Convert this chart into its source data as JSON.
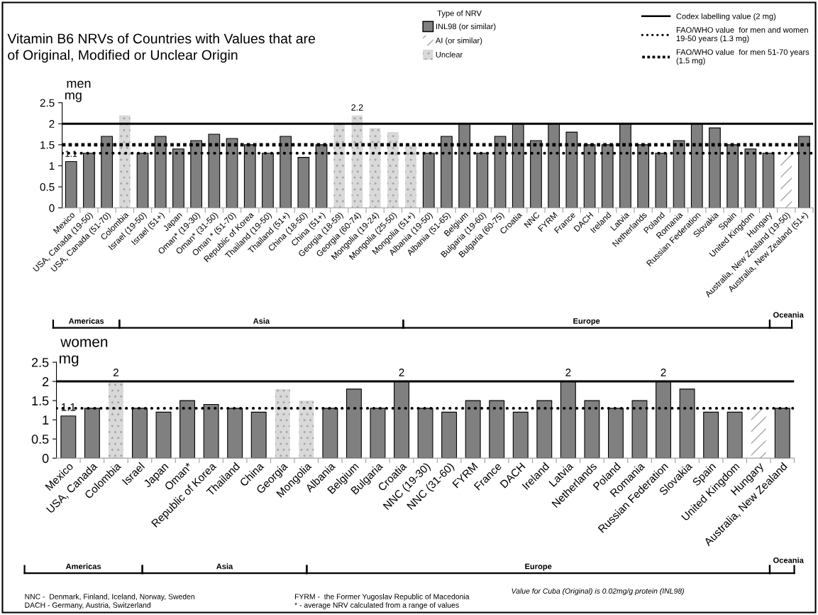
{
  "chart_data": [
    {
      "type": "bar",
      "title": "Vitamin B6 NRVs of Countries with Values that are\nof Original, Modified or Unclear Origin",
      "subtitle": "men",
      "ylabel": "mg",
      "legend_title": "Type of NRV",
      "categories": [
        "Mexico",
        "USA, Canada (19-50)",
        "USA, Canada (51-70)",
        "Colombia",
        "Israel (19-50)",
        "Israel (51+)",
        "Japan",
        "Oman* (19-30)",
        "Oman* (31-50)",
        "Oman * (51-70)",
        "Republic of Korea",
        "Thailand (19-50)",
        "Thailand (51+)",
        "China (18-50)",
        "China (51+)",
        "Georgia (18-59)",
        "Georgia (60-74)",
        "Mongolia (19-24)",
        "Mongolia (25-50)",
        "Mongolia (51+)",
        "Albania (19-50)",
        "Albania (51-65)",
        "Belgium",
        "Bulgaria (19-60)",
        "Bulgaria (60-75)",
        "Croatia",
        "NNC",
        "FYRM",
        "France",
        "DACH",
        "Ireland",
        "Latvia",
        "Netherlands",
        "Poland",
        "Romania",
        "Russian Federation",
        "Slovakia",
        "Spain",
        "United Kingdom",
        "Hungary",
        "Australia, New Zealand (19-50)",
        "Australia, New Zealand (51+)"
      ],
      "series": [
        {
          "name": "INL98 (or similar)",
          "color": "#808080",
          "values": [
            1.1,
            1.3,
            1.7,
            null,
            1.3,
            1.7,
            1.4,
            1.6,
            1.75,
            1.65,
            1.5,
            1.3,
            1.7,
            1.2,
            1.5,
            null,
            null,
            null,
            null,
            null,
            1.3,
            1.7,
            2.0,
            1.3,
            1.7,
            2.0,
            1.6,
            2.0,
            1.8,
            1.5,
            1.5,
            2.0,
            1.5,
            1.3,
            1.6,
            2.0,
            1.9,
            1.5,
            1.4,
            1.3,
            null,
            1.7
          ],
          "value_labels": [
            "1.1",
            null,
            null,
            null,
            null,
            null,
            null,
            null,
            null,
            null,
            null,
            null,
            null,
            null,
            null,
            null,
            null,
            null,
            null,
            null,
            null,
            null,
            null,
            null,
            null,
            null,
            null,
            null,
            null,
            null,
            null,
            null,
            null,
            null,
            null,
            null,
            null,
            null,
            null,
            null,
            null,
            null
          ]
        },
        {
          "name": "AI (or similar)",
          "color": "#ffffff",
          "values": [
            null,
            null,
            null,
            null,
            null,
            null,
            null,
            null,
            null,
            null,
            null,
            null,
            null,
            null,
            null,
            null,
            null,
            null,
            null,
            null,
            null,
            null,
            null,
            null,
            null,
            null,
            null,
            null,
            null,
            null,
            null,
            null,
            null,
            null,
            null,
            null,
            null,
            null,
            null,
            null,
            1.3,
            null
          ]
        },
        {
          "name": "Unclear",
          "color": "#d9d9d9",
          "values": [
            null,
            null,
            null,
            2.2,
            null,
            null,
            null,
            null,
            null,
            null,
            null,
            null,
            null,
            null,
            null,
            2.0,
            2.2,
            1.9,
            1.8,
            1.5,
            null,
            null,
            null,
            null,
            null,
            null,
            null,
            null,
            null,
            null,
            null,
            null,
            null,
            null,
            null,
            null,
            null,
            null,
            null,
            null,
            null,
            null
          ],
          "value_labels": [
            null,
            null,
            null,
            null,
            null,
            null,
            null,
            null,
            null,
            null,
            null,
            null,
            null,
            null,
            null,
            null,
            "2.2",
            null,
            null,
            null,
            null,
            null,
            null,
            null,
            null,
            null,
            null,
            null,
            null,
            null,
            null,
            null,
            null,
            null,
            null,
            null,
            null,
            null,
            null,
            null,
            null,
            null
          ]
        }
      ],
      "ylim": [
        0,
        2.5
      ],
      "yticks": [
        0,
        0.5,
        1,
        1.5,
        2,
        2.5
      ],
      "grid": false,
      "legend": "top right",
      "ref_lines": [
        {
          "axis": "y",
          "value": 2,
          "label": "Codex labelling value (2 mg)",
          "color": "#000000",
          "line_style": "solid"
        },
        {
          "axis": "y",
          "value": 1.3,
          "label": "FAO/WHO value  for men and women\n19-50 years (1.3 mg)",
          "color": "#000000",
          "line_style": "dotted"
        },
        {
          "axis": "y",
          "value": 1.5,
          "label": "FAO/WHO value  for men 51-70 years\n(1.5 mg)",
          "color": "#000000",
          "line_style": "dashed"
        }
      ],
      "annotations": [
        "Americas",
        "Asia",
        "Europe",
        "Oceania"
      ]
    },
    {
      "type": "bar",
      "title": "women",
      "ylabel": "mg",
      "categories": [
        "Mexico",
        "USA, Canada",
        "Colombia",
        "Israel",
        "Japan",
        "Oman*",
        "Republic of Korea",
        "Thailand",
        "China",
        "Georgia",
        "Mongolia",
        "Albania",
        "Belgium",
        "Bulgaria",
        "Croatia",
        "NNC (19-30)",
        "NNC (31-60)",
        "FYRM",
        "France",
        "DACH",
        "Ireland",
        "Latvia",
        "Netherlands",
        "Poland",
        "Romania",
        "Russian Federation",
        "Slovakia",
        "Spain",
        "United Kingdom",
        "Hungary",
        "Australia, New Zealand"
      ],
      "series": [
        {
          "color": "#808080",
          "values": [
            1.1,
            1.3,
            null,
            1.3,
            1.2,
            1.5,
            1.4,
            1.3,
            1.2,
            null,
            null,
            1.3,
            1.8,
            1.3,
            2.0,
            1.3,
            1.2,
            1.5,
            1.5,
            1.2,
            1.5,
            2.0,
            1.5,
            1.3,
            1.5,
            2.0,
            1.8,
            1.2,
            1.2,
            null,
            1.3
          ],
          "value_labels": [
            "1.1",
            null,
            null,
            null,
            null,
            null,
            null,
            null,
            null,
            null,
            null,
            null,
            null,
            null,
            "2",
            null,
            null,
            null,
            null,
            null,
            null,
            "2",
            null,
            null,
            null,
            "2",
            null,
            null,
            null,
            null,
            null
          ]
        },
        {
          "color": "#ffffff",
          "values": [
            null,
            null,
            null,
            null,
            null,
            null,
            null,
            null,
            null,
            null,
            null,
            null,
            null,
            null,
            null,
            null,
            null,
            null,
            null,
            null,
            null,
            null,
            null,
            null,
            null,
            null,
            null,
            null,
            null,
            1.3,
            null
          ]
        },
        {
          "color": "#d9d9d9",
          "values": [
            null,
            null,
            2.0,
            null,
            null,
            null,
            null,
            null,
            null,
            1.8,
            1.5,
            null,
            null,
            null,
            null,
            null,
            null,
            null,
            null,
            null,
            null,
            null,
            null,
            null,
            null,
            null,
            null,
            null,
            null,
            null,
            null
          ],
          "value_labels": [
            null,
            null,
            "2",
            null,
            null,
            null,
            null,
            null,
            null,
            null,
            null,
            null,
            null,
            null,
            null,
            null,
            null,
            null,
            null,
            null,
            null,
            null,
            null,
            null,
            null,
            null,
            null,
            null,
            null,
            null,
            null
          ]
        }
      ],
      "ylim": [
        0,
        2.5
      ],
      "yticks": [
        0,
        0.5,
        1,
        1.5,
        2,
        2.5
      ],
      "grid": false,
      "ref_lines": [
        {
          "axis": "y",
          "value": 2,
          "color": "#000000",
          "line_style": "solid"
        },
        {
          "axis": "y",
          "value": 1.3,
          "color": "#000000",
          "line_style": "dotted"
        }
      ],
      "annotations": [
        "Americas",
        "Asia",
        "Europe",
        "Oceania",
        "NNC -  Denmark, Finland, Iceland, Norway, Sweden\nDACH - Germany, Austria, Switzerland",
        "FYRM -  the Former Yugoslav Republic of Macedonia\n* - average NRV calculated from a range of values",
        "Value for Cuba (Original) is 0.02mg/g protein (INL98)"
      ]
    }
  ]
}
